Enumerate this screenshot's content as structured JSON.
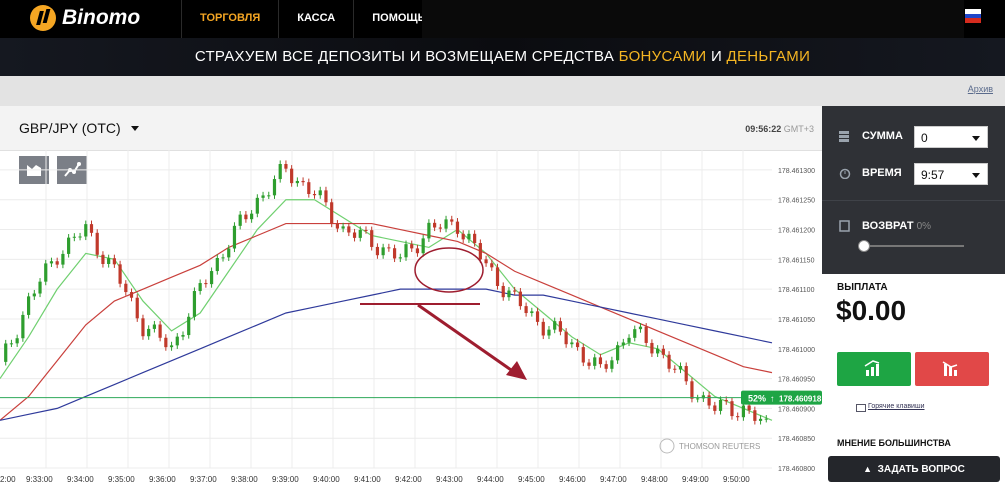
{
  "brand": {
    "name": "Binomo"
  },
  "nav": {
    "items": [
      {
        "label": "ТОРГОВЛЯ"
      },
      {
        "label": "КАССА"
      },
      {
        "label": "ПОМОЩЬ"
      }
    ]
  },
  "banner": {
    "text_a": "СТРАХУЕМ ВСЕ ДЕПОЗИТЫ И ВОЗМЕЩАЕМ СРЕДСТВА ",
    "hl_a": "БОНУСАМИ",
    "text_b": " И ",
    "hl_b": "ДЕНЬГАМИ"
  },
  "archive_link": "Архив",
  "chart_header": {
    "pair": "GBP/JPY (OTC)",
    "time": "09:56:22",
    "tz": "GMT+3"
  },
  "watermark": "THOMSON REUTERS",
  "sidebar": {
    "amount": {
      "label": "СУММА",
      "value": "0"
    },
    "time": {
      "label": "ВРЕМЯ",
      "value": "9:57"
    },
    "refund": {
      "label": "ВОЗВРАТ",
      "value": "0%"
    },
    "payout": {
      "label": "ВЫПЛАТА",
      "value": "$0.00"
    },
    "hotkeys": "Горячие клавиши",
    "majority": "МНЕНИЕ БОЛЬШИНСТВА"
  },
  "ask_button": "ЗАДАТЬ ВОПРОС",
  "colors": {
    "accent": "#f5a623",
    "up": "#1ea544",
    "down": "#e14848",
    "sidebar": "#2f3136"
  },
  "chart_data": {
    "type": "line",
    "x_ticks": [
      "9:33:00",
      "9:34:00",
      "9:35:00",
      "9:36:00",
      "9:37:00",
      "9:38:00",
      "9:39:00",
      "9:40:00",
      "9:41:00",
      "9:42:00",
      "9:43:00",
      "9:44:00",
      "9:45:00",
      "9:46:00",
      "9:47:00",
      "9:48:00",
      "9:49:00",
      "9:50:00"
    ],
    "x_tick_first_partial": "2:00",
    "y_ticks": [
      "178.461300",
      "178.461250",
      "178.461200",
      "178.461150",
      "178.461100",
      "178.461050",
      "178.461000",
      "178.460950",
      "178.460900",
      "178.460850",
      "178.460800"
    ],
    "ylim": [
      178.4608,
      178.46132
    ],
    "current_price": 178.460918,
    "current_price_label": "178.460918",
    "up_percent": "52%",
    "series": [
      {
        "color": "#2e9e2e",
        "role": "price",
        "x": [
          0,
          2,
          4,
          6,
          8,
          10,
          12,
          14,
          16,
          18,
          20,
          22,
          24,
          26,
          28,
          30,
          32,
          34,
          36,
          38,
          40,
          42,
          44,
          46,
          48,
          50,
          52,
          54
        ],
        "y": [
          178.46097,
          178.46108,
          178.46116,
          178.4612,
          178.46113,
          178.46104,
          178.461,
          178.4611,
          178.46118,
          178.46125,
          178.4613,
          178.46126,
          178.4612,
          178.46118,
          178.46115,
          178.4612,
          178.46121,
          178.46114,
          178.46108,
          178.46104,
          178.46101,
          178.46096,
          178.46103,
          178.461,
          178.46094,
          178.4609,
          178.4609,
          178.46086
        ]
      },
      {
        "color": "#70d070",
        "role": "fast-ma",
        "x": [
          0,
          2,
          4,
          6,
          8,
          10,
          12,
          14,
          16,
          18,
          20,
          22,
          24,
          26,
          28,
          30,
          32,
          34,
          36,
          38,
          40,
          42,
          44,
          46,
          48,
          50,
          52,
          54
        ],
        "y": [
          178.46095,
          178.46102,
          178.4611,
          178.46116,
          178.46115,
          178.46108,
          178.46103,
          178.46106,
          178.46113,
          178.4612,
          178.46125,
          178.46125,
          178.46122,
          178.46119,
          178.46118,
          178.46117,
          178.4612,
          178.46116,
          178.4611,
          178.46106,
          178.46102,
          178.46099,
          178.46101,
          178.461,
          178.46096,
          178.46092,
          178.4609,
          178.46088
        ]
      },
      {
        "color": "#c9403c",
        "role": "slow-ma",
        "x": [
          0,
          2,
          4,
          6,
          8,
          10,
          12,
          14,
          16,
          18,
          20,
          22,
          24,
          26,
          28,
          30,
          32,
          34,
          36,
          38,
          40,
          42,
          44,
          46,
          48,
          50,
          52,
          54
        ],
        "y": [
          178.46088,
          178.46092,
          178.46098,
          178.46104,
          178.46108,
          178.4611,
          178.46112,
          178.46114,
          178.46117,
          178.46119,
          178.46121,
          178.46121,
          178.46121,
          178.46121,
          178.4612,
          178.46119,
          178.46118,
          178.46116,
          178.46113,
          178.46111,
          178.46109,
          178.46107,
          178.46105,
          178.46103,
          178.46101,
          178.46099,
          178.46097,
          178.46096
        ]
      },
      {
        "color": "#2f3a9b",
        "role": "long-ma",
        "x": [
          0,
          2,
          4,
          6,
          8,
          10,
          12,
          14,
          16,
          18,
          20,
          22,
          24,
          26,
          28,
          30,
          32,
          34,
          36,
          38,
          40,
          42,
          44,
          46,
          48,
          50,
          52,
          54
        ],
        "y": [
          178.46088,
          178.46089,
          178.4609,
          178.46092,
          178.46094,
          178.46096,
          178.46098,
          178.461,
          178.46102,
          178.46104,
          178.46106,
          178.46107,
          178.46108,
          178.46109,
          178.4611,
          178.4611,
          178.4611,
          178.4611,
          178.46109,
          178.46109,
          178.46108,
          178.46107,
          178.46106,
          178.46105,
          178.46104,
          178.46103,
          178.46102,
          178.46101
        ]
      }
    ],
    "grid": true
  }
}
